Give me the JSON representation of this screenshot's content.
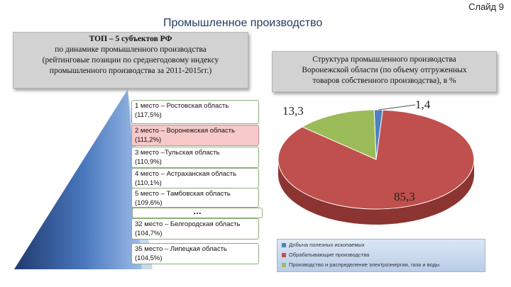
{
  "slide_number": "Слайд 9",
  "page_title": "Промышленное производство",
  "left_panel": [
    "ТОП – 5 субъектов РФ",
    "по динамике промышленного производства",
    "(рейтинговые позиции по среднегодовому индексу",
    "промышленного производства за 2011-2015гг.)"
  ],
  "rankings": [
    {
      "line1": "1 место – Ростовская область",
      "line2": "(117,5%)"
    },
    {
      "line1": "2 место – Воронежская область",
      "line2": "(111,2%)"
    },
    {
      "line1": "3 место –Тульская область",
      "line2": "(110,9%)"
    },
    {
      "line1": "4 место – Астраханская область",
      "line2": "(110,1%)"
    },
    {
      "line1": "5 место – Тамбовская область",
      "line2": "(109,6%)"
    },
    {
      "line1": "32 место – Белгородская область",
      "line2": "(104,7%)"
    },
    {
      "line1": "35 место – Липецкая область",
      "line2": "(104,5%)"
    }
  ],
  "ellipsis": "…",
  "right_panel": [
    "Структура промышленного производства",
    "Воронежской области (по объему отгруженных",
    "товаров собственного производства), в %"
  ],
  "colors": {
    "mining": "#4f81bd",
    "manufacturing": "#c0504d",
    "energy": "#9bbb59",
    "pyramid_dark": "#1f3a6e",
    "pyramid_light": "#8fb0e0"
  },
  "chart_data": {
    "type": "pie",
    "categories": [
      "Добыча полезных ископаемых",
      "Обрабатывающие производства",
      "Производство и распределение электроэнергии, газа и воды"
    ],
    "values": [
      1.4,
      85.3,
      13.3
    ],
    "value_labels": [
      "1,4",
      "85,3",
      "13,3"
    ]
  }
}
